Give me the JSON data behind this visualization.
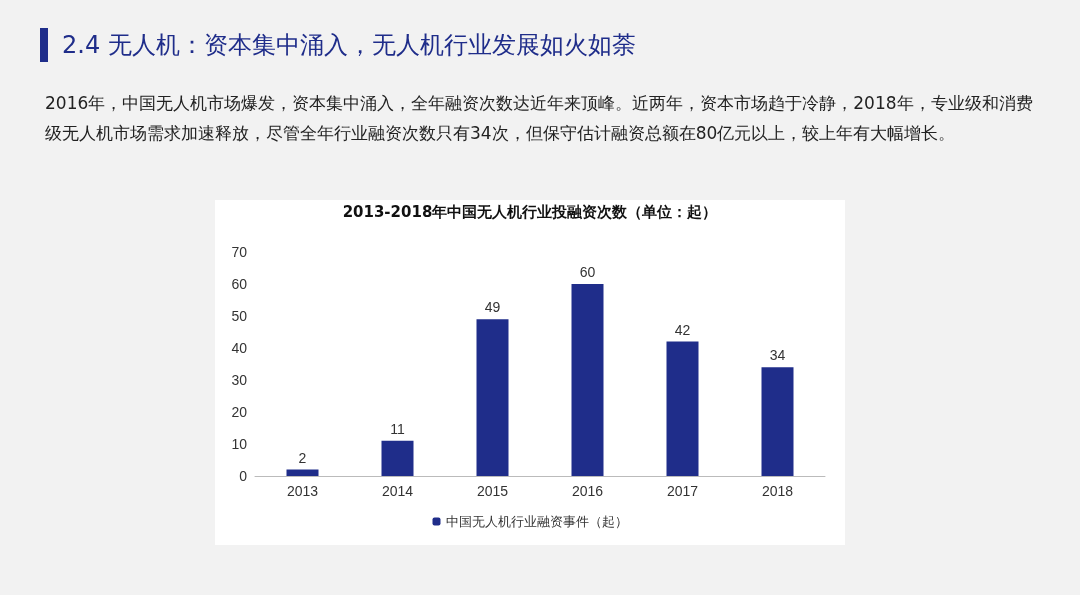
{
  "chart_data": {
    "type": "bar",
    "title": "2.4 无人机：资本集中涌入，无人机行业发展如火如荼",
    "subtitle": "2016年，中国无人机市场爆发，资本集中涌入，全年融资次数达近年来顶峰。近两年，资本市场趋于冷静，2018年，专业级和消费级无人机市场需求加速释放，尽管全年行业融资次数只有34次，但保守估计融资总额在80亿元以上，较上年有大幅增长。",
    "annotations": [
      "2013-2018年中国无人机行业投融资次数（单位：起）"
    ],
    "categories": [
      "2013",
      "2014",
      "2015",
      "2016",
      "2017",
      "2018"
    ],
    "series": [
      {
        "name": "中国无人机行业融资事件（起）",
        "color": "#1f2d8a",
        "values": [
          2,
          11,
          49,
          60,
          42,
          34
        ]
      }
    ],
    "ylim": [
      0,
      70
    ],
    "yticks": [
      0,
      10,
      20,
      30,
      40,
      50,
      60,
      70
    ],
    "legend": "bottom",
    "data_labels": true
  }
}
